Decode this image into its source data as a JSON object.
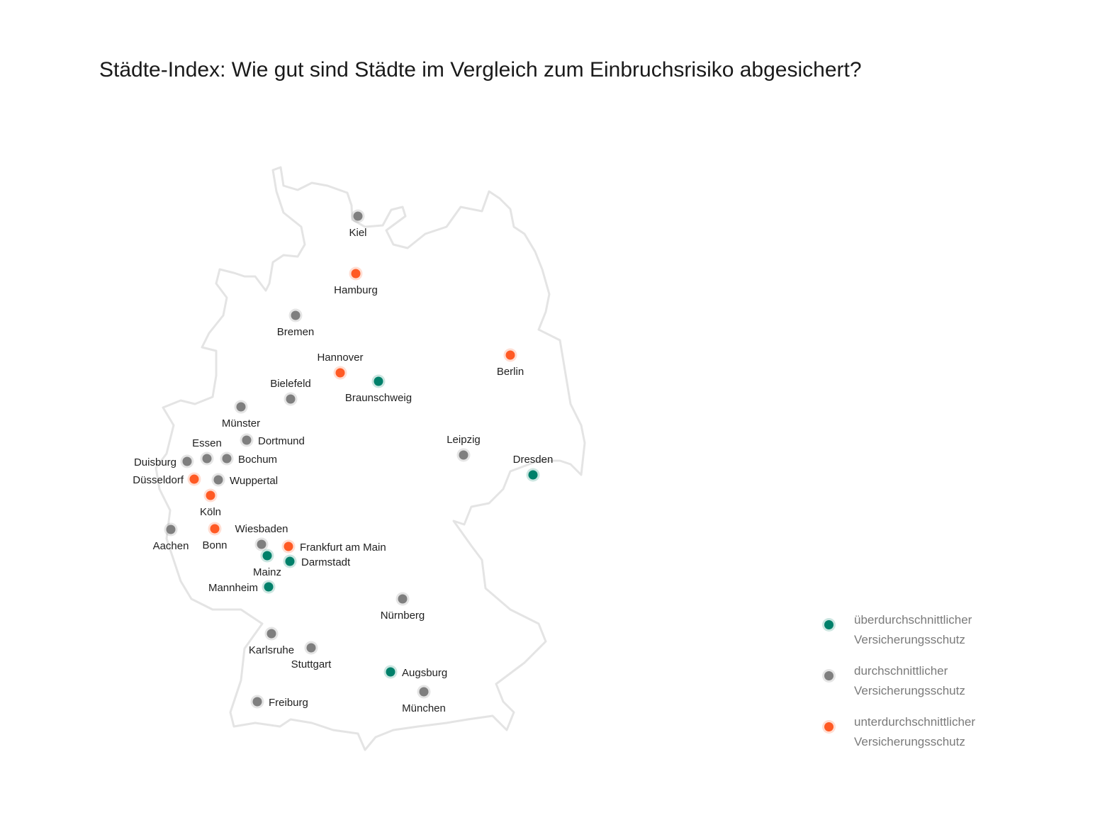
{
  "title": "Städte-Index: Wie gut sind Städte im Vergleich zum Einbruchsrisiko abgesichert?",
  "colors": {
    "above": "#00806a",
    "average": "#7f7f7f",
    "below": "#ff5a24",
    "outline": "#e4e4e4"
  },
  "legend": [
    {
      "key": "above",
      "line1": "überdurchschnittlicher",
      "line2": "Versicherungsschutz"
    },
    {
      "key": "average",
      "line1": "durchschnittlicher",
      "line2": "Versicherungsschutz"
    },
    {
      "key": "below",
      "line1": "unterdurchschnittlicher",
      "line2": "Versicherungsschutz"
    }
  ],
  "cities": [
    {
      "name": "Kiel",
      "category": "average"
    },
    {
      "name": "Hamburg",
      "category": "below"
    },
    {
      "name": "Bremen",
      "category": "average"
    },
    {
      "name": "Hannover",
      "category": "below"
    },
    {
      "name": "Braunschweig",
      "category": "above"
    },
    {
      "name": "Berlin",
      "category": "below"
    },
    {
      "name": "Bielefeld",
      "category": "average"
    },
    {
      "name": "Münster",
      "category": "average"
    },
    {
      "name": "Dortmund",
      "category": "average"
    },
    {
      "name": "Essen",
      "category": "average"
    },
    {
      "name": "Bochum",
      "category": "average"
    },
    {
      "name": "Duisburg",
      "category": "average"
    },
    {
      "name": "Düsseldorf",
      "category": "below"
    },
    {
      "name": "Wuppertal",
      "category": "average"
    },
    {
      "name": "Köln",
      "category": "below"
    },
    {
      "name": "Aachen",
      "category": "average"
    },
    {
      "name": "Bonn",
      "category": "below"
    },
    {
      "name": "Wiesbaden",
      "category": "average"
    },
    {
      "name": "Frankfurt am Main",
      "category": "below"
    },
    {
      "name": "Mainz",
      "category": "above"
    },
    {
      "name": "Darmstadt",
      "category": "above"
    },
    {
      "name": "Mannheim",
      "category": "above"
    },
    {
      "name": "Leipzig",
      "category": "average"
    },
    {
      "name": "Dresden",
      "category": "above"
    },
    {
      "name": "Nürnberg",
      "category": "average"
    },
    {
      "name": "Karlsruhe",
      "category": "average"
    },
    {
      "name": "Stuttgart",
      "category": "average"
    },
    {
      "name": "Augsburg",
      "category": "above"
    },
    {
      "name": "München",
      "category": "average"
    },
    {
      "name": "Freiburg",
      "category": "average"
    }
  ]
}
